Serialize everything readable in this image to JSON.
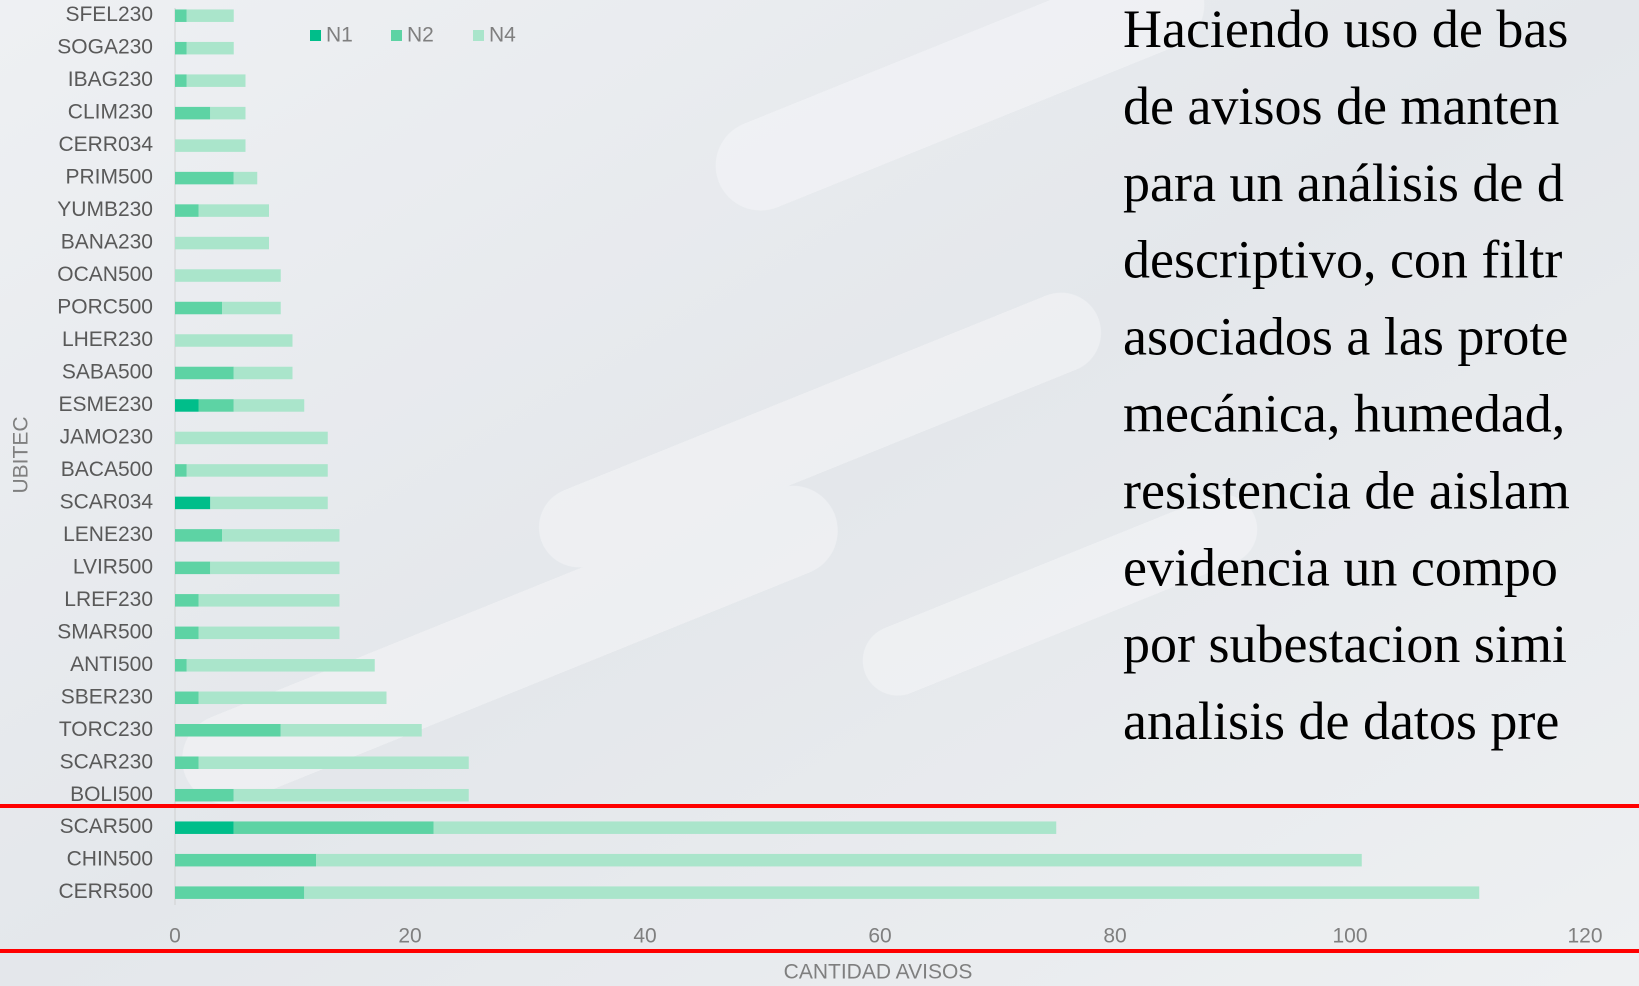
{
  "chart_data": {
    "type": "stacked-barh",
    "ylabel": "UBITEC",
    "xlabel": "CANTIDAD AVISOS",
    "categories": [
      "SFEL230",
      "SOGA230",
      "IBAG230",
      "CLIM230",
      "CERR034",
      "PRIM500",
      "YUMB230",
      "BANA230",
      "OCAN500",
      "PORC500",
      "LHER230",
      "SABA500",
      "ESME230",
      "JAMO230",
      "BACA500",
      "SCAR034",
      "LENE230",
      "LVIR500",
      "LREF230",
      "SMAR500",
      "ANTI500",
      "SBER230",
      "TORC230",
      "SCAR230",
      "BOLI500",
      "SCAR500",
      "CHIN500",
      "CERR500"
    ],
    "series": [
      {
        "name": "N1",
        "color": "#00be8a",
        "values": [
          0,
          0,
          0,
          0,
          0,
          0,
          0,
          0,
          0,
          0,
          0,
          0,
          2,
          0,
          0,
          3,
          0,
          0,
          0,
          0,
          0,
          0,
          0,
          0,
          0,
          5,
          0,
          0
        ]
      },
      {
        "name": "N2",
        "color": "#5dd3a4",
        "values": [
          1,
          1,
          1,
          3,
          0,
          5,
          2,
          0,
          0,
          4,
          0,
          5,
          3,
          0,
          1,
          0,
          4,
          3,
          2,
          2,
          1,
          2,
          9,
          2,
          5,
          17,
          12,
          11
        ]
      },
      {
        "name": "N4",
        "color": "#aae5cb",
        "values": [
          4,
          4,
          5,
          3,
          6,
          2,
          6,
          8,
          9,
          5,
          10,
          5,
          6,
          13,
          12,
          10,
          10,
          11,
          12,
          12,
          16,
          16,
          12,
          23,
          20,
          53,
          89,
          100
        ]
      }
    ],
    "xlim": [
      0,
      120
    ],
    "xticks": [
      0,
      20,
      40,
      60,
      80,
      100,
      120
    ],
    "grid": false,
    "legend": "top"
  },
  "text": {
    "lines": [
      "Haciendo uso de bas",
      "de avisos de manten",
      "para un análisis de d",
      "descriptivo, con filtr",
      "asociados a las prote",
      "mecánica, humedad,",
      "resistencia de aislam",
      "evidencia un compo",
      "por subestacion simi",
      "analisis de datos pre"
    ]
  }
}
